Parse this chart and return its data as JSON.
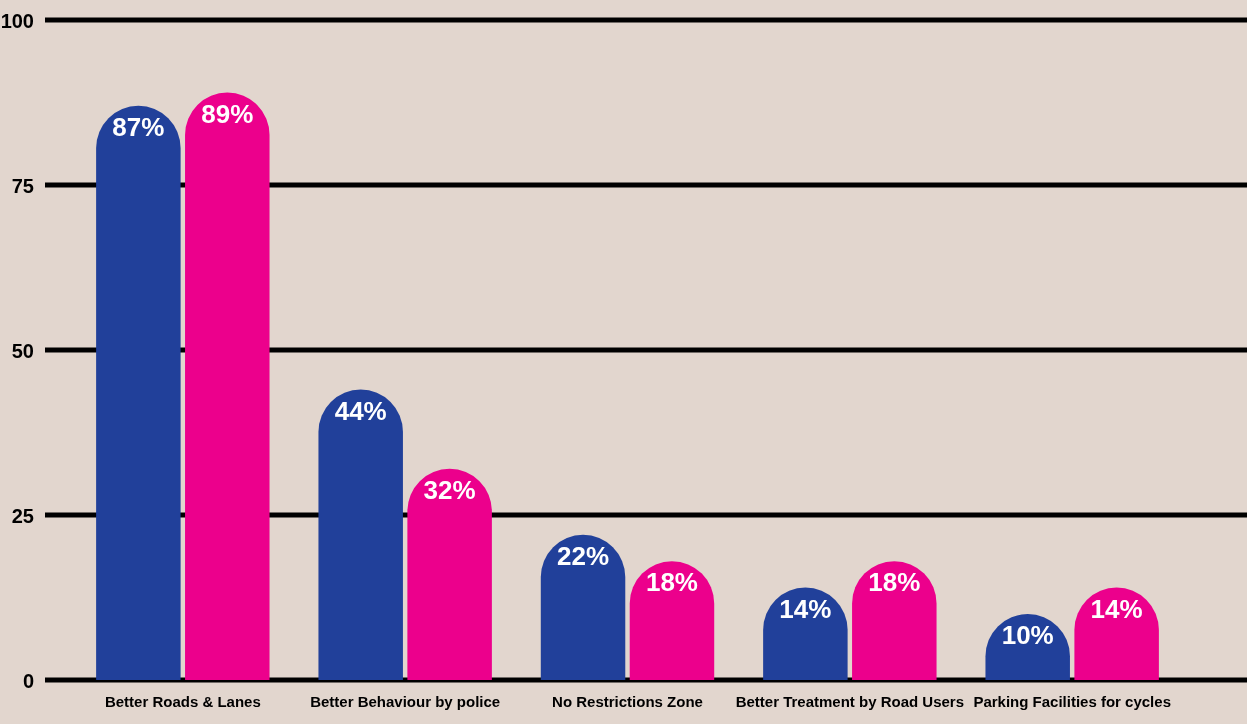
{
  "chart_data": {
    "type": "bar",
    "categories": [
      "Better Roads & Lanes",
      "Better Behaviour by police",
      "No Restrictions Zone",
      "Better Treatment by Road Users",
      "Parking Facilities for cycles"
    ],
    "series": [
      {
        "color": "#21409a",
        "values": [
          87,
          44,
          22,
          14,
          10
        ],
        "value_labels": [
          "87%",
          "44%",
          "22%",
          "14%",
          "10%"
        ]
      },
      {
        "color": "#ec008c",
        "values": [
          89,
          32,
          18,
          18,
          14
        ],
        "value_labels": [
          "89%",
          "32%",
          "18%",
          "18%",
          "14%"
        ]
      }
    ],
    "ylim": [
      0,
      100
    ],
    "yticks": [
      0,
      25,
      50,
      75,
      100
    ],
    "grid": "y"
  }
}
